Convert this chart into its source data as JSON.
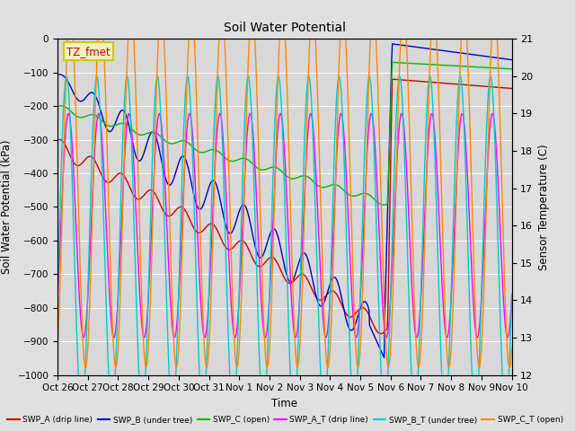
{
  "title": "Soil Water Potential",
  "ylabel_left": "Soil Water Potential (kPa)",
  "ylabel_right": "Sensor Temperature (C)",
  "xlabel": "Time",
  "ylim_left": [
    -1000,
    0
  ],
  "ylim_right": [
    12.0,
    21.0
  ],
  "fig_bg_color": "#e0e0e0",
  "plot_bg_color": "#d8d8d8",
  "grid_color": "#ffffff",
  "annotation_label": "TZ_fmet",
  "annotation_color": "#cc0000",
  "annotation_bg": "#f0f0c0",
  "annotation_border": "#cccc00",
  "x_tick_labels": [
    "Oct 26",
    "Oct 27",
    "Oct 28",
    "Oct 29",
    "Oct 30",
    "Oct 31",
    "Nov 1",
    "Nov 2",
    "Nov 3",
    "Nov 4",
    "Nov 5",
    "Nov 6",
    "Nov 7",
    "Nov 8",
    "Nov 9",
    "Nov 10"
  ],
  "colors": {
    "swp_a": "#cc0000",
    "swp_b": "#0000cc",
    "swp_c": "#00bb00",
    "swp_at": "#ff00ff",
    "swp_bt": "#00cccc",
    "swp_ct": "#ff8800"
  },
  "legend_entries": [
    {
      "label": "SWP_A (drip line)",
      "color": "#cc0000"
    },
    {
      "label": "SWP_B (under tree)",
      "color": "#0000cc"
    },
    {
      "label": "SWP_C (open)",
      "color": "#00bb00"
    },
    {
      "label": "SWP_A_T (drip line)",
      "color": "#ff00ff"
    },
    {
      "label": "SWP_B_T (under tree)",
      "color": "#00cccc"
    },
    {
      "label": "SWP_C_T (open)",
      "color": "#ff8800"
    }
  ]
}
